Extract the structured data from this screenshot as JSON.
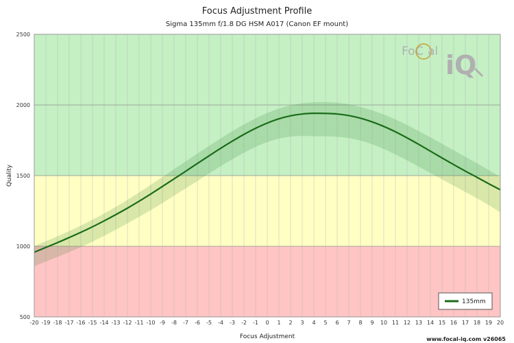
{
  "chart_data": {
    "type": "line",
    "title": "Focus Adjustment Profile",
    "subtitle": "Sigma 135mm f/1.8 DG HSM A017 (Canon EF mount)",
    "xlabel": "Focus Adjustment",
    "ylabel": "Quality",
    "xlim": [
      -20,
      20
    ],
    "ylim": [
      500,
      2500
    ],
    "xticks": [
      -20,
      -19,
      -18,
      -17,
      -16,
      -15,
      -14,
      -13,
      -12,
      -11,
      -10,
      -9,
      -8,
      -7,
      -6,
      -5,
      -4,
      -3,
      -2,
      -1,
      0,
      1,
      2,
      3,
      4,
      5,
      6,
      7,
      8,
      9,
      10,
      11,
      12,
      13,
      14,
      15,
      16,
      17,
      18,
      19,
      20
    ],
    "yticks": [
      500,
      1000,
      1500,
      2000,
      2500
    ],
    "grid": true,
    "legend_position": "bottom-right",
    "bands": [
      {
        "from": 500,
        "to": 1000,
        "color": "#ffc4c4"
      },
      {
        "from": 1000,
        "to": 1500,
        "color": "#ffffc4"
      },
      {
        "from": 1500,
        "to": 2500,
        "color": "#c4f0c4"
      }
    ],
    "series": [
      {
        "name": "135mm",
        "color": "#1a6b1a",
        "x": [
          -20,
          -19,
          -18,
          -17,
          -16,
          -15,
          -14,
          -13,
          -12,
          -11,
          -10,
          -9,
          -8,
          -7,
          -6,
          -5,
          -4,
          -3,
          -2,
          -1,
          0,
          1,
          2,
          3,
          4,
          5,
          6,
          7,
          8,
          9,
          10,
          11,
          12,
          13,
          14,
          15,
          16,
          17,
          18,
          19,
          20
        ],
        "y": [
          958,
          992,
          1026,
          1062,
          1099,
          1138,
          1180,
          1224,
          1270,
          1319,
          1370,
          1423,
          1477,
          1531,
          1586,
          1640,
          1693,
          1744,
          1792,
          1835,
          1872,
          1902,
          1923,
          1936,
          1941,
          1940,
          1936,
          1925,
          1906,
          1880,
          1848,
          1810,
          1767,
          1721,
          1673,
          1625,
          1578,
          1532,
          1488,
          1443,
          1400
        ],
        "upper": [
          1002,
          1036,
          1071,
          1108,
          1147,
          1188,
          1232,
          1279,
          1329,
          1381,
          1435,
          1490,
          1546,
          1601,
          1656,
          1710,
          1763,
          1814,
          1862,
          1905,
          1943,
          1974,
          1997,
          2012,
          2019,
          2020,
          2016,
          2005,
          1986,
          1962,
          1932,
          1897,
          1858,
          1815,
          1771,
          1725,
          1679,
          1633,
          1587,
          1540,
          1490
        ],
        "lower": [
          858,
          892,
          925,
          959,
          995,
          1033,
          1074,
          1117,
          1162,
          1208,
          1256,
          1306,
          1358,
          1410,
          1462,
          1515,
          1567,
          1616,
          1662,
          1703,
          1737,
          1762,
          1776,
          1781,
          1779,
          1778,
          1775,
          1766,
          1748,
          1722,
          1689,
          1650,
          1608,
          1564,
          1519,
          1474,
          1429,
          1384,
          1339,
          1292,
          1240
        ]
      }
    ]
  },
  "logo": {
    "text_left": "Fo",
    "text_c": "C",
    "text_right": "al",
    "text_iq": "iQ"
  },
  "footer": {
    "text": "www.focal-iq.com  v26065"
  }
}
